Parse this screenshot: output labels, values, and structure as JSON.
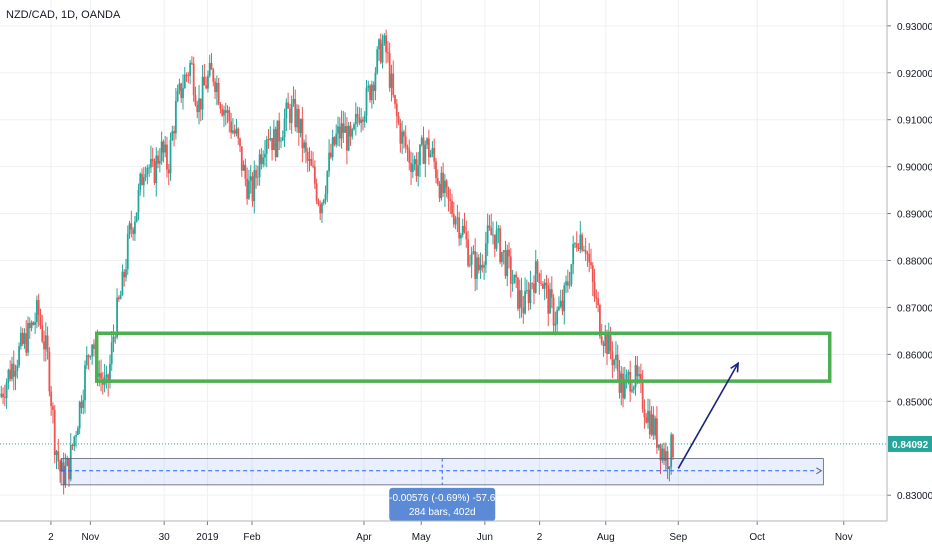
{
  "chart_data": {
    "type": "candlestick",
    "title": "NZD/CAD, 1D, OANDA",
    "y_ticks": [
      "0.93000",
      "0.92000",
      "0.91000",
      "0.90000",
      "0.89000",
      "0.88000",
      "0.87000",
      "0.86000",
      "0.85000",
      "0.83000"
    ],
    "y_tick_values": [
      0.93,
      0.92,
      0.91,
      0.9,
      0.89,
      0.88,
      0.87,
      0.86,
      0.85,
      0.83
    ],
    "ylim": [
      0.8245,
      0.9355
    ],
    "x_ticks": [
      "2",
      "Nov",
      "30",
      "2019",
      "Feb",
      "Apr",
      "May",
      "Jun",
      "2",
      "Aug",
      "Sep",
      "Oct",
      "Nov"
    ],
    "x_tick_days": [
      0,
      31,
      89,
      123,
      158,
      246,
      291,
      341,
      384,
      436,
      493,
      555,
      623
    ],
    "xlim": [
      -40,
      657
    ],
    "last_price": "0.84092",
    "last_price_value": 0.84092,
    "colors": {
      "up": "#26a69a",
      "down": "#ef5350",
      "zone": "#4caf50",
      "arrow": "#1a237e",
      "measure": "#2962ff",
      "price_tag": "#26a69a"
    },
    "zone": {
      "top": 0.8645,
      "bottom": 0.8543,
      "start_day": 36,
      "end_day": 612
    },
    "arrow": {
      "from_day": 493,
      "from_price": 0.8357,
      "to_day": 540,
      "to_price": 0.8581
    },
    "measure": {
      "start_day": 8,
      "end_day": 607,
      "top": 0.8378,
      "bottom": 0.8322,
      "line_price": 0.8352,
      "label_line1": "-0.00576 (-0.69%) -57.6",
      "label_line2": "284 bars, 402d"
    },
    "close_path": [
      [
        -40,
        0.851
      ],
      [
        -30,
        0.858
      ],
      [
        -18,
        0.864
      ],
      [
        -10,
        0.869
      ],
      [
        -2,
        0.858
      ],
      [
        3,
        0.842
      ],
      [
        8,
        0.834
      ],
      [
        14,
        0.836
      ],
      [
        22,
        0.848
      ],
      [
        28,
        0.858
      ],
      [
        32,
        0.864
      ],
      [
        38,
        0.856
      ],
      [
        44,
        0.852
      ],
      [
        50,
        0.866
      ],
      [
        56,
        0.874
      ],
      [
        62,
        0.886
      ],
      [
        68,
        0.892
      ],
      [
        74,
        0.902
      ],
      [
        80,
        0.898
      ],
      [
        86,
        0.904
      ],
      [
        92,
        0.9
      ],
      [
        98,
        0.912
      ],
      [
        104,
        0.918
      ],
      [
        110,
        0.922
      ],
      [
        116,
        0.913
      ],
      [
        122,
        0.918
      ],
      [
        128,
        0.92
      ],
      [
        134,
        0.914
      ],
      [
        140,
        0.91
      ],
      [
        146,
        0.906
      ],
      [
        152,
        0.898
      ],
      [
        158,
        0.894
      ],
      [
        164,
        0.902
      ],
      [
        170,
        0.908
      ],
      [
        176,
        0.905
      ],
      [
        182,
        0.909
      ],
      [
        188,
        0.912
      ],
      [
        194,
        0.91
      ],
      [
        200,
        0.902
      ],
      [
        206,
        0.898
      ],
      [
        212,
        0.892
      ],
      [
        218,
        0.9
      ],
      [
        224,
        0.906
      ],
      [
        230,
        0.908
      ],
      [
        236,
        0.904
      ],
      [
        242,
        0.912
      ],
      [
        248,
        0.914
      ],
      [
        254,
        0.92
      ],
      [
        260,
        0.926
      ],
      [
        264,
        0.924
      ],
      [
        270,
        0.912
      ],
      [
        276,
        0.906
      ],
      [
        282,
        0.902
      ],
      [
        288,
        0.9
      ],
      [
        294,
        0.905
      ],
      [
        300,
        0.902
      ],
      [
        306,
        0.896
      ],
      [
        312,
        0.892
      ],
      [
        318,
        0.89
      ],
      [
        324,
        0.886
      ],
      [
        330,
        0.88
      ],
      [
        336,
        0.878
      ],
      [
        342,
        0.884
      ],
      [
        348,
        0.886
      ],
      [
        354,
        0.882
      ],
      [
        360,
        0.878
      ],
      [
        366,
        0.873
      ],
      [
        372,
        0.87
      ],
      [
        378,
        0.876
      ],
      [
        384,
        0.878
      ],
      [
        390,
        0.872
      ],
      [
        396,
        0.868
      ],
      [
        402,
        0.87
      ],
      [
        408,
        0.878
      ],
      [
        414,
        0.886
      ],
      [
        420,
        0.884
      ],
      [
        426,
        0.874
      ],
      [
        432,
        0.866
      ],
      [
        438,
        0.862
      ],
      [
        444,
        0.858
      ],
      [
        450,
        0.852
      ],
      [
        456,
        0.856
      ],
      [
        462,
        0.853
      ],
      [
        468,
        0.848
      ],
      [
        474,
        0.844
      ],
      [
        480,
        0.84
      ],
      [
        484,
        0.838
      ],
      [
        490,
        0.8409
      ]
    ]
  }
}
